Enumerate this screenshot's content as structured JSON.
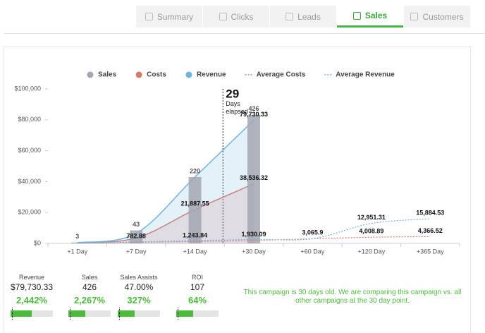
{
  "tabs": [
    "Summary",
    "Clicks",
    "Leads",
    "Sales",
    "Customers"
  ],
  "active_tab": 3,
  "chart_data": {
    "type": "combo",
    "categories": [
      "+1 Day",
      "+7 Day",
      "+14 Day",
      "+30 Day",
      "+60 Day",
      "+120 Day",
      "+365 Day"
    ],
    "ylim": [
      0,
      100000
    ],
    "yticks": [
      {
        "value": 0,
        "label": "$0"
      },
      {
        "value": 20000,
        "label": "$20,000"
      },
      {
        "value": 40000,
        "label": "$40,000"
      },
      {
        "value": 60000,
        "label": "$60,000"
      },
      {
        "value": 80000,
        "label": "$80,000"
      },
      {
        "value": 100000,
        "label": "$100,000"
      }
    ],
    "y2lim": [
      0,
      512
    ],
    "grid": false,
    "legend": "top",
    "marker": {
      "value": 29,
      "label": "Days elapsed",
      "category": 3
    },
    "series": [
      {
        "name": "Sales",
        "type": "bar",
        "axis": "y2",
        "color": "#a3a7b1",
        "values": [
          3,
          43,
          220,
          426,
          null,
          null,
          null
        ]
      },
      {
        "name": "Costs",
        "type": "area",
        "color": "#d9786b",
        "values": [
          300,
          3500,
          21887.55,
          38536.32,
          null,
          null,
          null
        ],
        "value_labels": [
          null,
          null,
          "21,887.55",
          "38,536.32",
          null,
          null,
          null
        ]
      },
      {
        "name": "Revenue",
        "type": "area",
        "color": "#6fb3e0",
        "values": [
          500,
          6500,
          43000,
          79730.33,
          null,
          null,
          null
        ],
        "value_labels": [
          null,
          null,
          null,
          "79,730.33",
          null,
          null,
          null
        ]
      },
      {
        "name": "Average Costs",
        "type": "dashed",
        "color": "#d9786b",
        "values": [
          150,
          782.88,
          1243.84,
          1930.09,
          3000,
          4008.89,
          4366.52
        ],
        "value_labels": [
          null,
          "782.88",
          "1,243.84",
          "1,930.09",
          null,
          "4,008.89",
          "4,366.52"
        ]
      },
      {
        "name": "Average Revenue",
        "type": "dashed",
        "color": "#6fb3e0",
        "values": [
          250,
          1000,
          1800,
          2600,
          3065.9,
          12951.31,
          15884.53
        ],
        "value_labels": [
          null,
          null,
          null,
          null,
          "3,065.9",
          "12,951.31",
          "15,884.53"
        ]
      }
    ]
  },
  "stats": [
    {
      "label": "Revenue",
      "value": "$79,730.33",
      "change": "2,442%"
    },
    {
      "label": "Sales",
      "value": "426",
      "change": "2,267%"
    },
    {
      "label": "Sales Assists",
      "value": "47.00%",
      "change": "327%"
    },
    {
      "label": "ROI",
      "value": "107",
      "change": "64%"
    }
  ],
  "message": "This campaign is 30 days old. We are comparing this campaign vs. all other campaigns at the 30 day point."
}
